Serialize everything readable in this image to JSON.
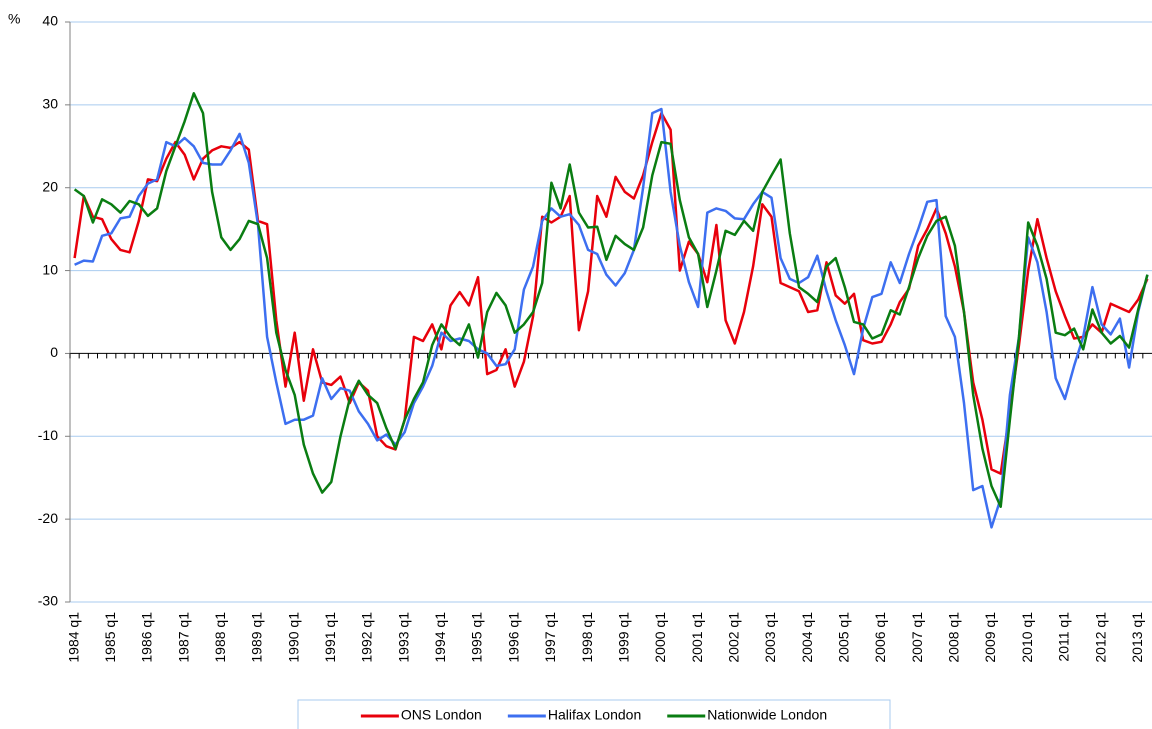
{
  "chart_data": {
    "type": "line",
    "y_label": "%",
    "categories": [
      "1984 q1",
      null,
      null,
      null,
      "1985 q1",
      null,
      null,
      null,
      "1986 q1",
      null,
      null,
      null,
      "1987 q1",
      null,
      null,
      null,
      "1988 q1",
      null,
      null,
      null,
      "1989 q1",
      null,
      null,
      null,
      "1990 q1",
      null,
      null,
      null,
      "1991 q1",
      null,
      null,
      null,
      "1992 q1",
      null,
      null,
      null,
      "1993 q1",
      null,
      null,
      null,
      "1994 q1",
      null,
      null,
      null,
      "1995 q1",
      null,
      null,
      null,
      "1996 q1",
      null,
      null,
      null,
      "1997 q1",
      null,
      null,
      null,
      "1998 q1",
      null,
      null,
      null,
      "1999 q1",
      null,
      null,
      null,
      "2000 q1",
      null,
      null,
      null,
      "2001 q1",
      null,
      null,
      null,
      "2002 q1",
      null,
      null,
      null,
      "2003 q1",
      null,
      null,
      null,
      "2004 q1",
      null,
      null,
      null,
      "2005 q1",
      null,
      null,
      null,
      "2006 q1",
      null,
      null,
      null,
      "2007 q1",
      null,
      null,
      null,
      "2008 q1",
      null,
      null,
      null,
      "2009 q1",
      null,
      null,
      null,
      "2010 q1",
      null,
      null,
      null,
      "2011 q1",
      null,
      null,
      null,
      "2012 q1",
      null,
      null,
      null,
      "2013 q1",
      null
    ],
    "series": [
      {
        "name": "ONS London",
        "color": "#e8000b",
        "values": [
          11.5,
          19,
          16.5,
          16.2,
          13.8,
          12.5,
          12.2,
          16,
          21,
          20.8,
          23.5,
          25.5,
          24,
          21,
          23.5,
          24.5,
          25,
          24.8,
          25.5,
          24.6,
          16,
          15.6,
          4,
          -4,
          2.5,
          -5.7,
          0.5,
          -3.5,
          -3.8,
          -2.8,
          -6,
          -3.5,
          -4.5,
          -10,
          -11.2,
          -11.6,
          -8,
          2,
          1.5,
          3.5,
          0.5,
          5.8,
          7.4,
          5.8,
          9.2,
          -2.5,
          -2,
          0.5,
          -4,
          -1,
          4.5,
          16.5,
          15.8,
          16.5,
          19,
          2.8,
          7.5,
          19,
          16.5,
          21.3,
          19.5,
          18.7,
          21.5,
          25.5,
          29,
          27,
          10,
          13.5,
          12,
          8.6,
          15.5,
          4,
          1.2,
          5,
          10.5,
          18,
          16.5,
          8.5,
          8,
          7.5,
          5,
          5.2,
          11,
          7,
          6,
          7.2,
          1.6,
          1.2,
          1.4,
          3.5,
          6.2,
          7.8,
          13,
          15,
          17.5,
          14.5,
          10.5,
          5,
          -3.5,
          -8,
          -14,
          -14.5,
          -7,
          1,
          10,
          16.2,
          11.5,
          7.5,
          4.5,
          1.8,
          2,
          3.5,
          2.5,
          6,
          5.5,
          5,
          6.5,
          9
        ]
      },
      {
        "name": "Halifax London",
        "color": "#3d6ff0",
        "values": [
          10.7,
          11.2,
          11.1,
          14.2,
          14.5,
          16.3,
          16.5,
          19,
          20.5,
          21,
          25.5,
          25,
          26,
          25,
          23,
          22.8,
          22.8,
          24.5,
          26.5,
          23,
          15.5,
          2,
          -3.5,
          -8.5,
          -8,
          -8,
          -7.5,
          -3,
          -5.5,
          -4.2,
          -4.5,
          -7,
          -8.5,
          -10.5,
          -9.8,
          -11,
          -9.5,
          -6,
          -4,
          -1.5,
          2.5,
          1.5,
          1.8,
          1.5,
          0.5,
          0,
          -1.5,
          -1.3,
          0.5,
          7.7,
          10.5,
          16,
          17.5,
          16.5,
          16.8,
          15.5,
          12.5,
          12,
          9.5,
          8.2,
          9.7,
          12.5,
          20,
          29,
          29.5,
          19.5,
          13,
          8.6,
          5.6,
          17,
          17.5,
          17.2,
          16.3,
          16.2,
          18,
          19.5,
          18.8,
          11.5,
          9,
          8.5,
          9.2,
          11.8,
          7.5,
          4,
          1,
          -2.5,
          3,
          6.8,
          7.2,
          11,
          8.5,
          12,
          15,
          18.3,
          18.5,
          4.5,
          2,
          -6,
          -16.5,
          -16,
          -21,
          -17.5,
          -5,
          2,
          14,
          11,
          5,
          -3,
          -5.5,
          -1.5,
          2,
          8,
          3.5,
          2.3,
          4.2,
          -1.7,
          5,
          9.5
        ]
      },
      {
        "name": "Nationwide London",
        "color": "#0a7d12",
        "values": [
          19.8,
          19,
          15.8,
          18.6,
          18,
          17,
          18.4,
          18,
          16.6,
          17.5,
          22,
          25,
          28,
          31.4,
          29,
          19.5,
          14,
          12.5,
          13.8,
          16,
          15.6,
          11.5,
          2.5,
          -2,
          -5,
          -11,
          -14.5,
          -16.8,
          -15.5,
          -10,
          -5.5,
          -3.3,
          -5,
          -6,
          -9,
          -11.5,
          -8,
          -5.5,
          -3.5,
          1,
          3.5,
          2,
          1,
          3.5,
          -0.5,
          5,
          7.3,
          5.8,
          2.5,
          3.5,
          5,
          8.5,
          20.6,
          17.5,
          22.8,
          17,
          15.2,
          15.3,
          11.3,
          14.2,
          13.2,
          12.5,
          15.2,
          21.5,
          25.5,
          25.3,
          18.5,
          14,
          12,
          5.6,
          10,
          14.8,
          14.3,
          16,
          14.8,
          19.5,
          21.5,
          23.4,
          14.5,
          8,
          7.2,
          6.2,
          10.5,
          11.5,
          8,
          3.8,
          3.5,
          1.8,
          2.3,
          5.2,
          4.7,
          8,
          11.5,
          14.2,
          16,
          16.5,
          13,
          5,
          -5,
          -11.5,
          -16,
          -18.5,
          -8,
          2,
          15.8,
          13,
          9,
          2.5,
          2.2,
          3,
          0.5,
          5.3,
          2.5,
          1.2,
          2.1,
          0.7,
          5.3,
          9.5
        ]
      }
    ],
    "ylim": [
      -30,
      40
    ],
    "yticks": [
      -30,
      -20,
      -10,
      0,
      10,
      20,
      30,
      40
    ],
    "grid": true,
    "grid_color": "#a9cbef",
    "legend": "bottom"
  }
}
